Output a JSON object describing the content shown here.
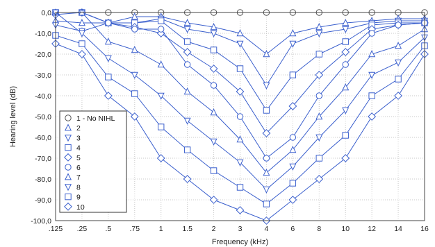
{
  "chart_data": {
    "type": "line",
    "title": "",
    "xlabel": "Frequency (kHz)",
    "ylabel": "Hearing level (dB)",
    "categories": [
      ".125",
      ".25",
      ".5",
      ".75",
      "1",
      "1.5",
      "2",
      "3",
      "4",
      "6",
      "8",
      "10",
      "12",
      "14",
      "16"
    ],
    "yticks": [
      "0,0",
      "-10,0",
      "-20,0",
      "-30,0",
      "-40,0",
      "-50,0",
      "-60,0",
      "-70,0",
      "-80,0",
      "-90,0",
      "-100,0"
    ],
    "ylim": [
      -100,
      0
    ],
    "grid": true,
    "legend_position": "bottom-left",
    "colors": {
      "line": "#3a5fcd",
      "marker": "#3a5fcd",
      "first_series": "#222222",
      "grid": "#c8c8c8"
    },
    "series": [
      {
        "name": "1 - No NIHL",
        "marker": "circle",
        "values": [
          0,
          0,
          0,
          0,
          0,
          0,
          0,
          0,
          0,
          0,
          0,
          0,
          0,
          0,
          0
        ]
      },
      {
        "name": "2",
        "marker": "triangle",
        "values": [
          -4,
          -5,
          -5,
          -2,
          -2,
          -5,
          -7,
          -10,
          -20,
          -10,
          -7,
          -5,
          -4,
          -3,
          -3
        ]
      },
      {
        "name": "3",
        "marker": "tri-down",
        "values": [
          -6,
          -9,
          -5,
          -5,
          -3,
          -8,
          -10,
          -15,
          -35,
          -15,
          -10,
          -8,
          -5,
          -4,
          -4
        ]
      },
      {
        "name": "4",
        "marker": "square",
        "values": [
          0,
          0,
          -5,
          -5,
          -4,
          -14,
          -18,
          -27,
          -47,
          -30,
          -20,
          -14,
          -6,
          -5,
          -5
        ]
      },
      {
        "name": "5",
        "marker": "diamond",
        "values": [
          -1,
          0,
          -5,
          -7,
          -10,
          -19,
          -27,
          -38,
          -58,
          -45,
          -30,
          -19,
          -8,
          -6,
          -5
        ]
      },
      {
        "name": "6",
        "marker": "circle",
        "values": [
          0,
          0,
          -5,
          -8,
          -8,
          -25,
          -35,
          -50,
          -70,
          -60,
          -40,
          -25,
          -10,
          -6,
          -5
        ]
      },
      {
        "name": "7",
        "marker": "triangle",
        "values": [
          0,
          0,
          -14,
          -18,
          -25,
          -38,
          -48,
          -61,
          -77,
          -66,
          -50,
          -36,
          -20,
          -16,
          -8
        ]
      },
      {
        "name": "8",
        "marker": "tri-down",
        "values": [
          0,
          -10,
          -22,
          -30,
          -40,
          -52,
          -62,
          -72,
          -85,
          -74,
          -60,
          -47,
          -30,
          -24,
          -12
        ]
      },
      {
        "name": "9",
        "marker": "square",
        "values": [
          -11,
          -15,
          -31,
          -39,
          -55,
          -66,
          -76,
          -84,
          -92,
          -82,
          -70,
          -59,
          -40,
          -32,
          -16
        ]
      },
      {
        "name": "10",
        "marker": "diamond",
        "values": [
          -15,
          -20,
          -40,
          -50,
          -70,
          -80,
          -90,
          -95,
          -100,
          -90,
          -80,
          -70,
          -50,
          -40,
          -20
        ]
      }
    ]
  }
}
